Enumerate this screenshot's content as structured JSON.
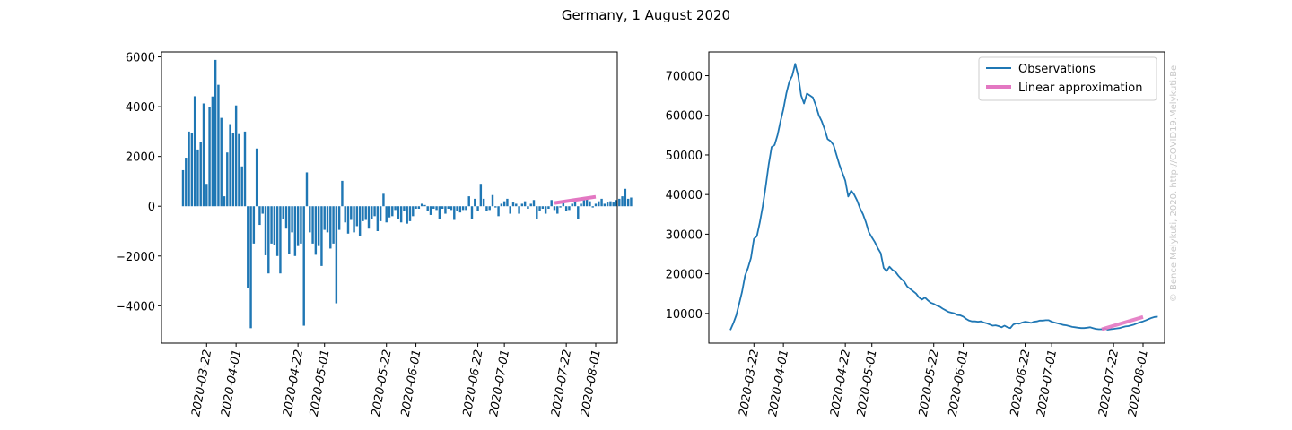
{
  "suptitle": "Germany, 1 August 2020",
  "watermark": "© Bence Melykuti, 2020. http://COVID19.Melykuti.Be",
  "colors": {
    "observations": "#1f77b4",
    "approximation": "#e377c2",
    "watermark": "#c8c8c8"
  },
  "chart_data": [
    {
      "type": "bar",
      "date_range": [
        "2020-03-14",
        "2020-08-01"
      ],
      "x_tick_labels": [
        "2020-03-22",
        "2020-04-01",
        "2020-04-22",
        "2020-05-01",
        "2020-05-22",
        "2020-06-01",
        "2020-06-22",
        "2020-07-01",
        "2020-07-22",
        "2020-08-01"
      ],
      "yticks": [
        -4000,
        -2000,
        0,
        2000,
        4000,
        6000
      ],
      "ylim": [
        -5500,
        6200
      ],
      "series": [
        {
          "type": "bar",
          "values": [
            1450,
            1950,
            3000,
            2950,
            4420,
            2280,
            2600,
            4130,
            900,
            3980,
            4410,
            5880,
            4880,
            3550,
            400,
            2160,
            3300,
            2950,
            4050,
            2900,
            1600,
            3000,
            -3300,
            -4900,
            -1500,
            2320,
            -750,
            -300,
            -1970,
            -2700,
            -1500,
            -1550,
            -2000,
            -2700,
            -500,
            -900,
            -1900,
            -1050,
            -2000,
            -1600,
            -1500,
            -4800,
            1360,
            -1050,
            -1500,
            -1950,
            -1600,
            -2400,
            -950,
            -1050,
            -1700,
            -1500,
            -3900,
            -950,
            1020,
            -650,
            -1100,
            -550,
            -1050,
            -800,
            -1200,
            -600,
            -550,
            -900,
            -500,
            -400,
            -1000,
            -600,
            500,
            -650,
            -450,
            -400,
            -150,
            -500,
            -650,
            -200,
            -700,
            -600,
            -400,
            -100,
            -100,
            100,
            50,
            -200,
            -350,
            -100,
            -150,
            -500,
            -100,
            -300,
            -100,
            -150,
            -550,
            -200,
            -250,
            -150,
            -150,
            400,
            -500,
            300,
            -200,
            900,
            300,
            -200,
            -150,
            450,
            -50,
            -400,
            100,
            200,
            300,
            -300,
            150,
            100,
            -300,
            100,
            200,
            -100,
            100,
            250,
            -500,
            -200,
            -100,
            -300,
            -100,
            250,
            -150,
            -300,
            -50,
            150,
            -200,
            -150,
            100,
            250,
            -500,
            100,
            250,
            300,
            200,
            -50,
            100,
            200,
            300,
            100,
            150,
            200,
            150,
            250,
            300,
            400,
            700,
            300,
            350
          ]
        },
        {
          "type": "line",
          "name": "Linear approximation",
          "x": [
            "2020-07-18",
            "2020-08-01"
          ],
          "values": [
            130,
            380
          ]
        }
      ]
    },
    {
      "type": "line",
      "date_range": [
        "2020-03-14",
        "2020-08-01"
      ],
      "x_tick_labels": [
        "2020-03-22",
        "2020-04-01",
        "2020-04-22",
        "2020-05-01",
        "2020-05-22",
        "2020-06-01",
        "2020-06-22",
        "2020-07-01",
        "2020-07-22",
        "2020-08-01"
      ],
      "yticks": [
        10000,
        20000,
        30000,
        40000,
        50000,
        60000,
        70000
      ],
      "ylim": [
        2500,
        76000
      ],
      "legend_position": "top-right",
      "series": [
        {
          "name": "Observations",
          "values": [
            5800,
            7500,
            9500,
            12500,
            15500,
            19500,
            21500,
            24000,
            28800,
            29500,
            33000,
            37000,
            42000,
            47500,
            52000,
            52500,
            55000,
            58500,
            61500,
            65500,
            68500,
            70000,
            73000,
            70000,
            65000,
            63000,
            65500,
            65000,
            64500,
            62500,
            60000,
            58500,
            56500,
            54000,
            53500,
            52500,
            50000,
            47500,
            45500,
            43500,
            39500,
            41000,
            40000,
            38500,
            36500,
            35000,
            33000,
            30500,
            29200,
            28000,
            26500,
            25200,
            21500,
            20700,
            21800,
            21000,
            20500,
            19500,
            18700,
            18000,
            16800,
            16200,
            15600,
            15000,
            14000,
            13500,
            14000,
            13300,
            12700,
            12400,
            12000,
            11700,
            11200,
            10800,
            10400,
            10200,
            10000,
            9600,
            9500,
            9200,
            8600,
            8200,
            8000,
            8000,
            7900,
            8000,
            7700,
            7500,
            7200,
            6900,
            7000,
            6800,
            6500,
            6900,
            6500,
            6300,
            7200,
            7500,
            7400,
            7700,
            7900,
            7800,
            7600,
            7900,
            8000,
            8200,
            8200,
            8300,
            8300,
            7900,
            7700,
            7500,
            7300,
            7100,
            7000,
            6800,
            6600,
            6500,
            6400,
            6300,
            6300,
            6400,
            6500,
            6300,
            6100,
            6000,
            6000,
            6200,
            5900,
            6000,
            6100,
            6200,
            6300,
            6500,
            6700,
            6800,
            7000,
            7200,
            7500,
            7800,
            8000,
            8300,
            8600,
            8900,
            9100,
            9200
          ]
        },
        {
          "name": "Linear approximation",
          "x": [
            "2020-07-18",
            "2020-08-01"
          ],
          "values": [
            6000,
            9100
          ]
        }
      ]
    }
  ]
}
